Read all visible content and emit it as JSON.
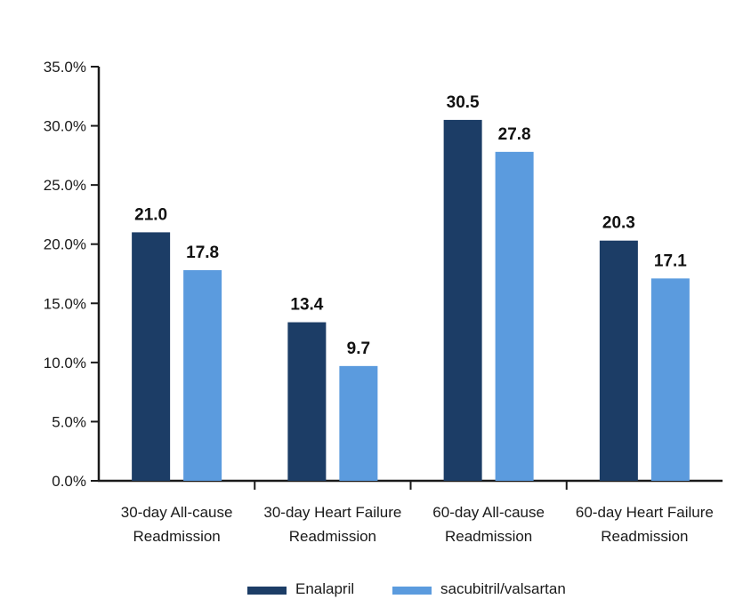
{
  "chart_data": {
    "type": "bar",
    "title": "",
    "xlabel": "",
    "ylabel": "",
    "categories": [
      [
        "30-day All-cause",
        "Readmission"
      ],
      [
        "30-day Heart Failure",
        "Readmission"
      ],
      [
        "60-day All-cause",
        "Readmission"
      ],
      [
        "60-day Heart Failure",
        "Readmission"
      ]
    ],
    "series": [
      {
        "name": "Enalapril",
        "color": "#1c3d66",
        "values": [
          21.0,
          13.4,
          30.5,
          20.3
        ],
        "labels": [
          "21.0",
          "13.4",
          "30.5",
          "20.3"
        ]
      },
      {
        "name": "sacubitril/valsartan",
        "color": "#5b9bde",
        "values": [
          17.8,
          9.7,
          27.8,
          17.1
        ],
        "labels": [
          "17.8",
          "9.7",
          "27.8",
          "17.1"
        ]
      }
    ],
    "ylim": [
      0,
      35
    ],
    "yticks": [
      0,
      5,
      10,
      15,
      20,
      25,
      30,
      35
    ],
    "ytick_labels": [
      "0.0%",
      "5.0%",
      "10.0%",
      "15.0%",
      "20.0%",
      "25.0%",
      "30.0%",
      "35.0%"
    ],
    "grid": false,
    "legend_position": "bottom-center"
  }
}
